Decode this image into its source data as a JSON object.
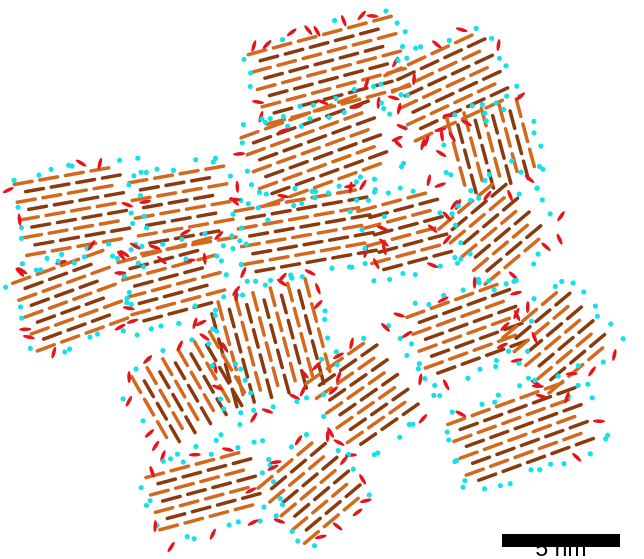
{
  "scale_bar": {
    "label": "5 nm"
  }
}
